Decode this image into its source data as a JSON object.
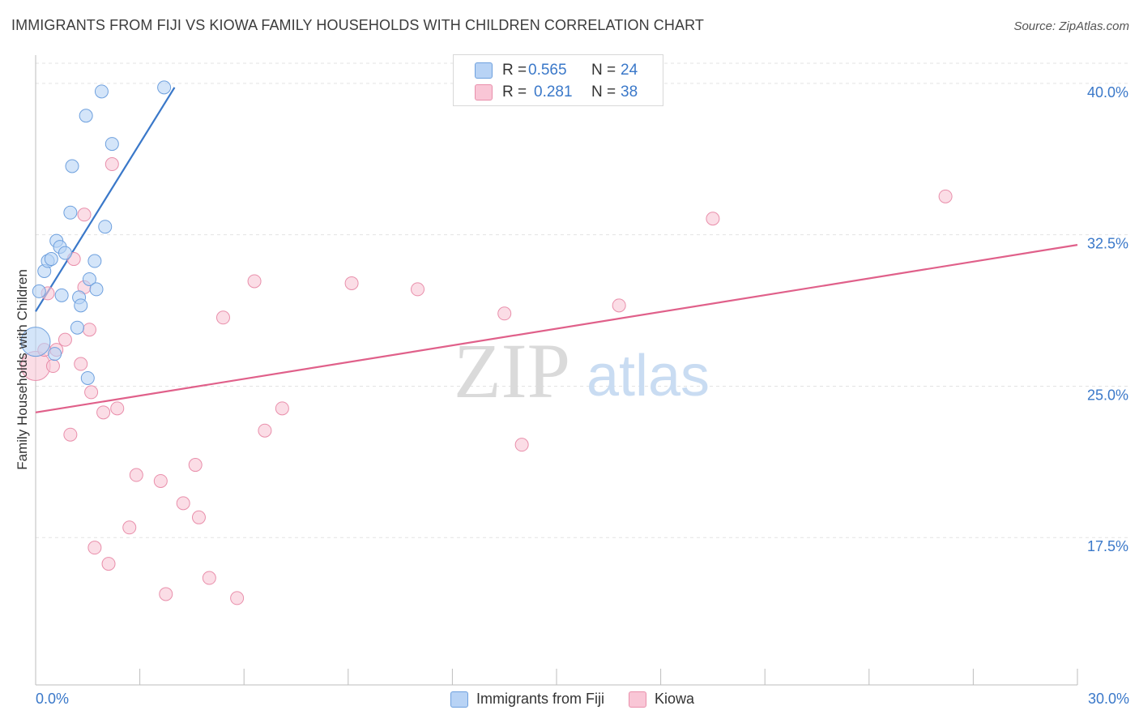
{
  "header": {
    "title": "IMMIGRANTS FROM FIJI VS KIOWA FAMILY HOUSEHOLDS WITH CHILDREN CORRELATION CHART",
    "source": "Source: ZipAtlas.com"
  },
  "watermark": {
    "zip": "ZIP",
    "atlas": "atlas"
  },
  "legend": {
    "r_label": "R =",
    "n_label": "N =",
    "series": [
      {
        "name": "Immigrants from Fiji",
        "r": "0.565",
        "n": "24",
        "fill": "#b8d3f5",
        "stroke": "#6ea0de",
        "line": "#3a78c9"
      },
      {
        "name": "Kiowa",
        "r": "0.281",
        "n": "38",
        "fill": "#f9c6d6",
        "stroke": "#e98fab",
        "line": "#e0608a"
      }
    ]
  },
  "axes": {
    "ylabel": "Family Households with Children",
    "x_min_label": "0.0%",
    "x_max_label": "30.0%",
    "y_tick_labels": [
      "40.0%",
      "32.5%",
      "25.0%",
      "17.5%"
    ]
  },
  "chart_data": {
    "type": "scatter",
    "title": "IMMIGRANTS FROM FIJI VS KIOWA FAMILY HOUSEHOLDS WITH CHILDREN CORRELATION CHART",
    "xlabel": "",
    "ylabel": "Family Households with Children",
    "xlim": [
      0,
      30
    ],
    "ylim": [
      10.2,
      41.0
    ],
    "y_ticks": [
      17.5,
      25.0,
      32.5,
      40.0
    ],
    "x_ticks": [
      0,
      3,
      6,
      9,
      12,
      15,
      18,
      21,
      24,
      27,
      30
    ],
    "grid": true,
    "legend_position": "top-center",
    "series": [
      {
        "name": "Immigrants from Fiji",
        "color": "#6ea0de",
        "points": [
          {
            "x": 0.0,
            "y": 27.2,
            "big": true
          },
          {
            "x": 0.1,
            "y": 29.7
          },
          {
            "x": 0.25,
            "y": 30.7
          },
          {
            "x": 0.35,
            "y": 31.2
          },
          {
            "x": 0.45,
            "y": 31.3
          },
          {
            "x": 0.55,
            "y": 26.6
          },
          {
            "x": 0.6,
            "y": 32.2
          },
          {
            "x": 0.7,
            "y": 31.9
          },
          {
            "x": 0.75,
            "y": 29.5
          },
          {
            "x": 0.85,
            "y": 31.6
          },
          {
            "x": 1.0,
            "y": 33.6
          },
          {
            "x": 1.05,
            "y": 35.9
          },
          {
            "x": 1.2,
            "y": 27.9
          },
          {
            "x": 1.25,
            "y": 29.4
          },
          {
            "x": 1.3,
            "y": 29.0
          },
          {
            "x": 1.45,
            "y": 38.4
          },
          {
            "x": 1.5,
            "y": 25.4
          },
          {
            "x": 1.55,
            "y": 30.3
          },
          {
            "x": 1.7,
            "y": 31.2
          },
          {
            "x": 1.75,
            "y": 29.8
          },
          {
            "x": 1.9,
            "y": 39.6
          },
          {
            "x": 2.0,
            "y": 32.9
          },
          {
            "x": 2.2,
            "y": 37.0
          },
          {
            "x": 3.7,
            "y": 39.8
          }
        ],
        "trend": {
          "x1": 0.0,
          "y1": 28.7,
          "x2": 4.0,
          "y2": 39.8
        }
      },
      {
        "name": "Kiowa",
        "color": "#e98fab",
        "points": [
          {
            "x": 0.0,
            "y": 26.0,
            "big": true
          },
          {
            "x": 0.25,
            "y": 26.8
          },
          {
            "x": 0.35,
            "y": 29.6
          },
          {
            "x": 0.5,
            "y": 26.0
          },
          {
            "x": 0.6,
            "y": 26.8
          },
          {
            "x": 0.85,
            "y": 27.3
          },
          {
            "x": 1.0,
            "y": 22.6
          },
          {
            "x": 1.1,
            "y": 31.3
          },
          {
            "x": 1.3,
            "y": 26.1
          },
          {
            "x": 1.4,
            "y": 29.9
          },
          {
            "x": 1.4,
            "y": 33.5
          },
          {
            "x": 1.55,
            "y": 27.8
          },
          {
            "x": 1.6,
            "y": 24.7
          },
          {
            "x": 1.7,
            "y": 17.0
          },
          {
            "x": 1.95,
            "y": 23.7
          },
          {
            "x": 2.1,
            "y": 16.2
          },
          {
            "x": 2.2,
            "y": 36.0
          },
          {
            "x": 2.35,
            "y": 23.9
          },
          {
            "x": 2.7,
            "y": 18.0
          },
          {
            "x": 2.9,
            "y": 20.6
          },
          {
            "x": 3.6,
            "y": 20.3
          },
          {
            "x": 3.75,
            "y": 14.7
          },
          {
            "x": 4.25,
            "y": 19.2
          },
          {
            "x": 4.6,
            "y": 21.1
          },
          {
            "x": 4.7,
            "y": 18.5
          },
          {
            "x": 5.0,
            "y": 15.5
          },
          {
            "x": 5.4,
            "y": 28.4
          },
          {
            "x": 5.8,
            "y": 14.5
          },
          {
            "x": 6.3,
            "y": 30.2
          },
          {
            "x": 6.6,
            "y": 22.8
          },
          {
            "x": 7.1,
            "y": 23.9
          },
          {
            "x": 9.1,
            "y": 30.1
          },
          {
            "x": 11.0,
            "y": 29.8
          },
          {
            "x": 13.5,
            "y": 28.6
          },
          {
            "x": 14.0,
            "y": 22.1
          },
          {
            "x": 16.8,
            "y": 29.0
          },
          {
            "x": 19.5,
            "y": 33.3
          },
          {
            "x": 26.2,
            "y": 34.4
          }
        ],
        "trend": {
          "x1": 0.0,
          "y1": 23.7,
          "x2": 30.0,
          "y2": 32.0
        }
      }
    ]
  }
}
